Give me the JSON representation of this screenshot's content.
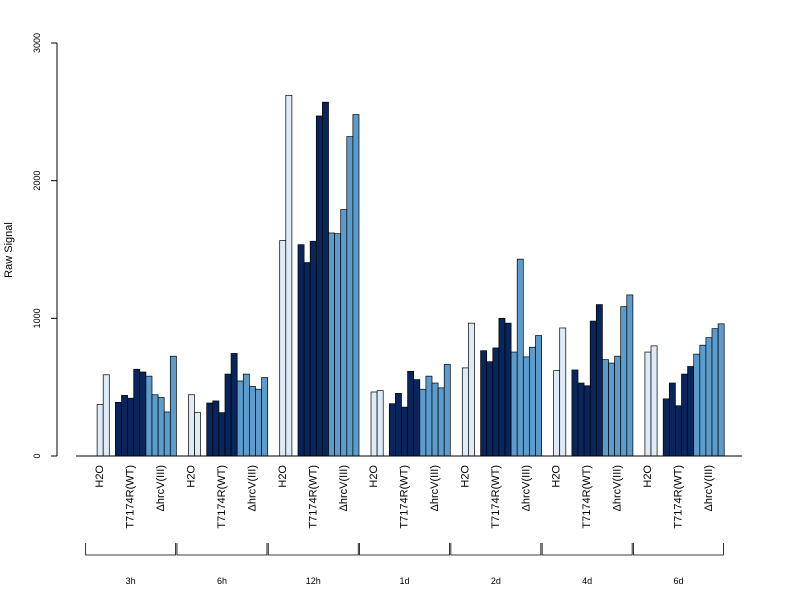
{
  "chart_data": {
    "type": "bar",
    "ylabel": "Raw Signal",
    "xlabel": "",
    "ylim": [
      0,
      3000
    ],
    "yticks": [
      0,
      1000,
      2000,
      3000
    ],
    "colors": {
      "H2O": "#deebf7",
      "T7174R(WT)": "#08265c",
      "ΔhrcV(III)": "#5b9ccc"
    },
    "timepoints": [
      {
        "label": "3h",
        "groups": [
          {
            "condition": "H2O",
            "values": [
              0,
              375,
              590
            ]
          },
          {
            "condition": "T7174R(WT)",
            "values": [
              390,
              440,
              420,
              630,
              610
            ]
          },
          {
            "condition": "ΔhrcV(III)",
            "values": [
              580,
              445,
              425,
              320,
              725
            ]
          }
        ]
      },
      {
        "label": "6h",
        "groups": [
          {
            "condition": "H2O",
            "values": [
              0,
              445,
              315
            ]
          },
          {
            "condition": "T7174R(WT)",
            "values": [
              385,
              400,
              315,
              595,
              745
            ]
          },
          {
            "condition": "ΔhrcV(III)",
            "values": [
              545,
              595,
              505,
              485,
              570
            ]
          }
        ]
      },
      {
        "label": "12h",
        "groups": [
          {
            "condition": "H2O",
            "values": [
              0,
              1565,
              2620
            ]
          },
          {
            "condition": "T7174R(WT)",
            "values": [
              1535,
              1405,
              1560,
              2470,
              2570
            ]
          },
          {
            "condition": "ΔhrcV(III)",
            "values": [
              1620,
              1615,
              1790,
              2320,
              2480
            ]
          }
        ]
      },
      {
        "label": "1d",
        "groups": [
          {
            "condition": "H2O",
            "values": [
              0,
              465,
              475
            ]
          },
          {
            "condition": "T7174R(WT)",
            "values": [
              380,
              455,
              355,
              615,
              555
            ]
          },
          {
            "condition": "ΔhrcV(III)",
            "values": [
              485,
              580,
              530,
              495,
              665
            ]
          }
        ]
      },
      {
        "label": "2d",
        "groups": [
          {
            "condition": "H2O",
            "values": [
              0,
              640,
              965
            ]
          },
          {
            "condition": "T7174R(WT)",
            "values": [
              765,
              685,
              785,
              1000,
              965
            ]
          },
          {
            "condition": "ΔhrcV(III)",
            "values": [
              755,
              1430,
              720,
              790,
              875
            ]
          }
        ]
      },
      {
        "label": "4d",
        "groups": [
          {
            "condition": "H2O",
            "values": [
              0,
              620,
              930
            ]
          },
          {
            "condition": "T7174R(WT)",
            "values": [
              625,
              530,
              510,
              980,
              1100
            ]
          },
          {
            "condition": "ΔhrcV(III)",
            "values": [
              700,
              675,
              725,
              1085,
              1170
            ]
          }
        ]
      },
      {
        "label": "6d",
        "groups": [
          {
            "condition": "H2O",
            "values": [
              0,
              755,
              800
            ]
          },
          {
            "condition": "T7174R(WT)",
            "values": [
              415,
              530,
              365,
              595,
              650
            ]
          },
          {
            "condition": "ΔhrcV(III)",
            "values": [
              740,
              805,
              860,
              925,
              960
            ]
          }
        ]
      }
    ],
    "grid": false,
    "legend": "none"
  }
}
